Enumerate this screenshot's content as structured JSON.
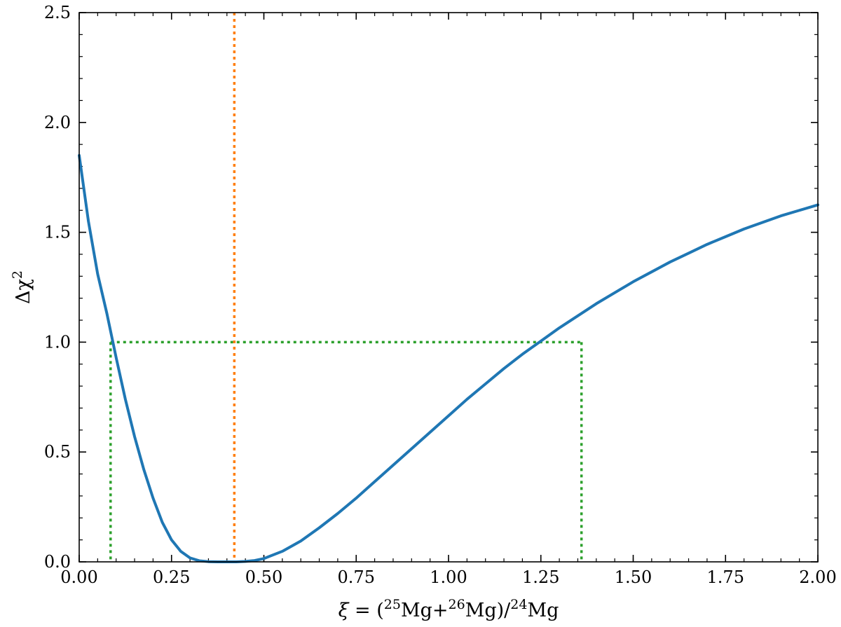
{
  "chart_data": {
    "type": "line",
    "xlim": [
      0.0,
      2.0
    ],
    "ylim": [
      0.0,
      2.5
    ],
    "xlabel": {
      "lhs": "ξ",
      "eq": " = (",
      "i1": "25",
      "t1": "Mg+",
      "i2": "26",
      "t2": "Mg)/",
      "i3": "24",
      "t3": "Mg"
    },
    "ylabel": {
      "base": "Δχ",
      "sup": "2"
    },
    "x_ticks": [
      0.0,
      0.25,
      0.5,
      0.75,
      1.0,
      1.25,
      1.5,
      1.75,
      2.0
    ],
    "x_tick_labels": [
      "0.00",
      "0.25",
      "0.50",
      "0.75",
      "1.00",
      "1.25",
      "1.50",
      "1.75",
      "2.00"
    ],
    "y_ticks": [
      0.0,
      0.5,
      1.0,
      1.5,
      2.0,
      2.5
    ],
    "y_tick_labels": [
      "0.0",
      "0.5",
      "1.0",
      "1.5",
      "2.0",
      "2.5"
    ],
    "x_minor_step": 0.05,
    "y_minor_step": 0.1,
    "grid": false,
    "series": [
      {
        "color": "#1f77b4",
        "style": "solid",
        "x": [
          0.0,
          0.025,
          0.05,
          0.075,
          0.1,
          0.125,
          0.15,
          0.175,
          0.2,
          0.225,
          0.25,
          0.275,
          0.3,
          0.325,
          0.35,
          0.375,
          0.4,
          0.425,
          0.45,
          0.475,
          0.5,
          0.55,
          0.6,
          0.65,
          0.7,
          0.75,
          0.8,
          0.85,
          0.9,
          0.95,
          1.0,
          1.05,
          1.1,
          1.15,
          1.2,
          1.25,
          1.3,
          1.35,
          1.4,
          1.45,
          1.5,
          1.55,
          1.6,
          1.65,
          1.7,
          1.75,
          1.8,
          1.85,
          1.9,
          1.95,
          2.0
        ],
        "y": [
          1.85,
          1.55,
          1.31,
          1.13,
          0.93,
          0.74,
          0.57,
          0.42,
          0.29,
          0.18,
          0.1,
          0.048,
          0.018,
          0.005,
          0.001,
          0.0,
          0.0,
          0.0,
          0.002,
          0.006,
          0.015,
          0.048,
          0.095,
          0.155,
          0.22,
          0.29,
          0.365,
          0.44,
          0.515,
          0.59,
          0.665,
          0.74,
          0.81,
          0.88,
          0.945,
          1.005,
          1.065,
          1.12,
          1.175,
          1.225,
          1.275,
          1.32,
          1.365,
          1.405,
          1.445,
          1.48,
          1.515,
          1.545,
          1.575,
          1.6,
          1.625
        ]
      }
    ],
    "best_fit_line": {
      "x": 0.42,
      "color": "#ff7f0e",
      "style": "dotted"
    },
    "interval_lines": {
      "level": 1.0,
      "x_low": 0.085,
      "x_high": 1.36,
      "color": "#2ca02c",
      "style": "dotted"
    }
  }
}
